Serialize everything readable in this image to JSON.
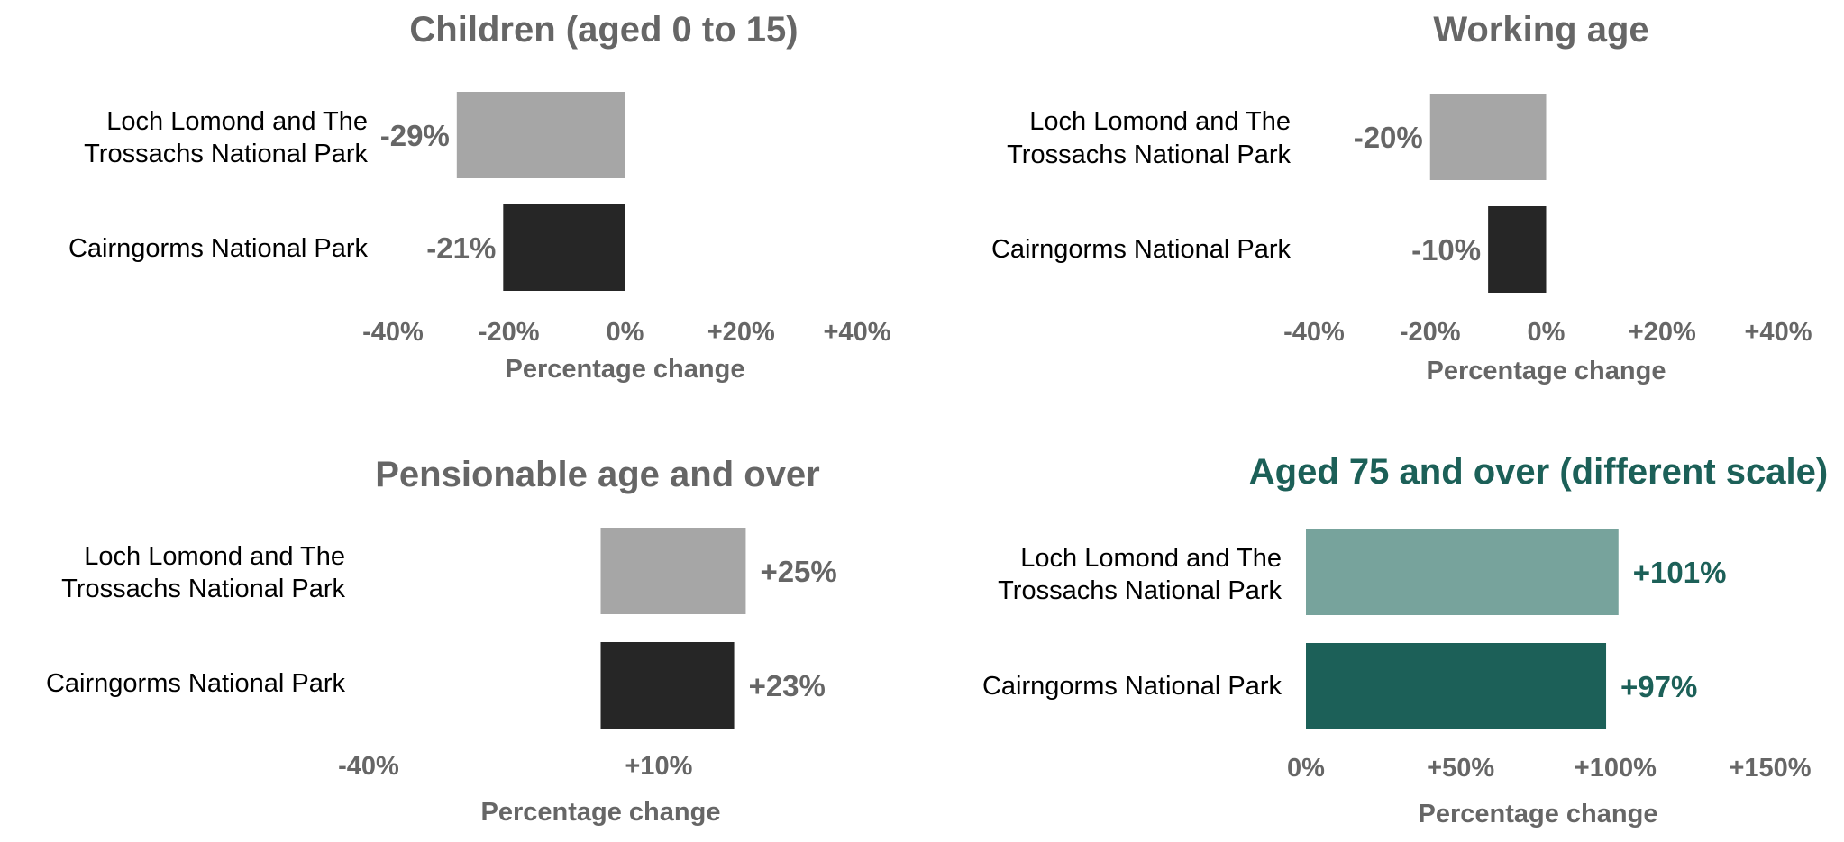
{
  "colors": {
    "grey_text": "#666666",
    "light_grey_bar": "#a6a6a6",
    "dark_bar": "#262626",
    "teal_dark": "#1c6058",
    "teal_light": "#77a39c"
  },
  "chart_data": [
    {
      "type": "bar",
      "orientation": "horizontal",
      "title": "Children (aged 0 to 15)",
      "title_color": "#666666",
      "categories": [
        [
          "Loch Lomond and The",
          "Trossachs National Park"
        ],
        [
          "Cairngorms National Park"
        ]
      ],
      "values": [
        -29,
        -21
      ],
      "data_labels": [
        "-29%",
        "-21%"
      ],
      "bar_colors": [
        "#a6a6a6",
        "#262626"
      ],
      "label_color": "#666666",
      "xlim": [
        -40,
        40
      ],
      "xticks": [
        -40,
        -20,
        0,
        20,
        40
      ],
      "xtick_labels": [
        "-40%",
        "-20%",
        "0%",
        "+20%",
        "+40%"
      ],
      "xlabel": "Percentage change",
      "grid": false,
      "legend": "none"
    },
    {
      "type": "bar",
      "orientation": "horizontal",
      "title": "Working age",
      "title_color": "#666666",
      "categories": [
        [
          "Loch Lomond and The",
          "Trossachs National Park"
        ],
        [
          "Cairngorms National Park"
        ]
      ],
      "values": [
        -20,
        -10
      ],
      "data_labels": [
        "-20%",
        "-10%"
      ],
      "bar_colors": [
        "#a6a6a6",
        "#262626"
      ],
      "label_color": "#666666",
      "xlim": [
        -40,
        40
      ],
      "xticks": [
        -40,
        -20,
        0,
        20,
        40
      ],
      "xtick_labels": [
        "-40%",
        "-20%",
        "0%",
        "+20%",
        "+40%"
      ],
      "xlabel": "Percentage change",
      "grid": false,
      "legend": "none"
    },
    {
      "type": "bar",
      "orientation": "horizontal",
      "title": "Pensionable age and over",
      "title_color": "#666666",
      "categories": [
        [
          "Loch Lomond and The",
          "Trossachs National Park"
        ],
        [
          "Cairngorms National Park"
        ]
      ],
      "values": [
        25,
        23
      ],
      "data_labels": [
        "+25%",
        "+23%"
      ],
      "bar_colors": [
        "#a6a6a6",
        "#262626"
      ],
      "label_color": "#666666",
      "xlim": [
        -40,
        40
      ],
      "xticks": [
        -40,
        10
      ],
      "xtick_labels": [
        "-40%",
        "+10%"
      ],
      "xlabel": "Percentage change",
      "grid": false,
      "legend": "none"
    },
    {
      "type": "bar",
      "orientation": "horizontal",
      "title": "Aged 75 and over (different scale)",
      "title_color": "#1c6058",
      "categories": [
        [
          "Loch Lomond and The",
          "Trossachs National Park"
        ],
        [
          "Cairngorms National Park"
        ]
      ],
      "values": [
        101,
        97
      ],
      "data_labels": [
        "+101%",
        "+97%"
      ],
      "bar_colors": [
        "#77a39c",
        "#1c6058"
      ],
      "label_color": "#1c6058",
      "xlim": [
        0,
        150
      ],
      "xticks": [
        0,
        50,
        100,
        150
      ],
      "xtick_labels": [
        "0%",
        "+50%",
        "+100%",
        "+150%"
      ],
      "xlabel": "Percentage change",
      "grid": false,
      "legend": "none"
    }
  ]
}
